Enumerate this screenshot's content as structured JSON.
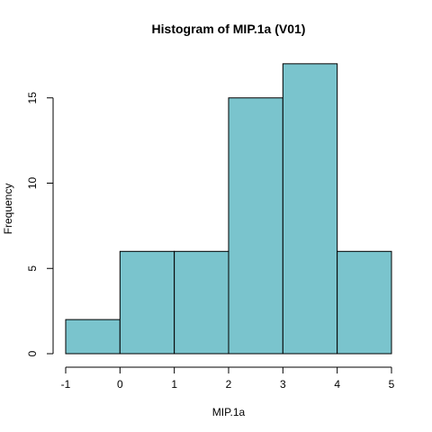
{
  "chart_data": {
    "type": "bar",
    "title": "Histogram of MIP.1a (V01)",
    "xlabel": "MIP.1a",
    "ylabel": "Frequency",
    "bins": [
      {
        "start": -1,
        "end": 0,
        "count": 2
      },
      {
        "start": 0,
        "end": 1,
        "count": 6
      },
      {
        "start": 1,
        "end": 2,
        "count": 6
      },
      {
        "start": 2,
        "end": 3,
        "count": 15
      },
      {
        "start": 3,
        "end": 4,
        "count": 17
      },
      {
        "start": 4,
        "end": 5,
        "count": 6
      }
    ],
    "xlim": [
      -1,
      5
    ],
    "ylim": [
      0,
      17
    ],
    "x_ticks": [
      "-1",
      "0",
      "1",
      "2",
      "3",
      "4",
      "5"
    ],
    "y_ticks": [
      "0",
      "5",
      "10",
      "15"
    ],
    "bar_color": "#7ac4cd",
    "grid": false
  }
}
